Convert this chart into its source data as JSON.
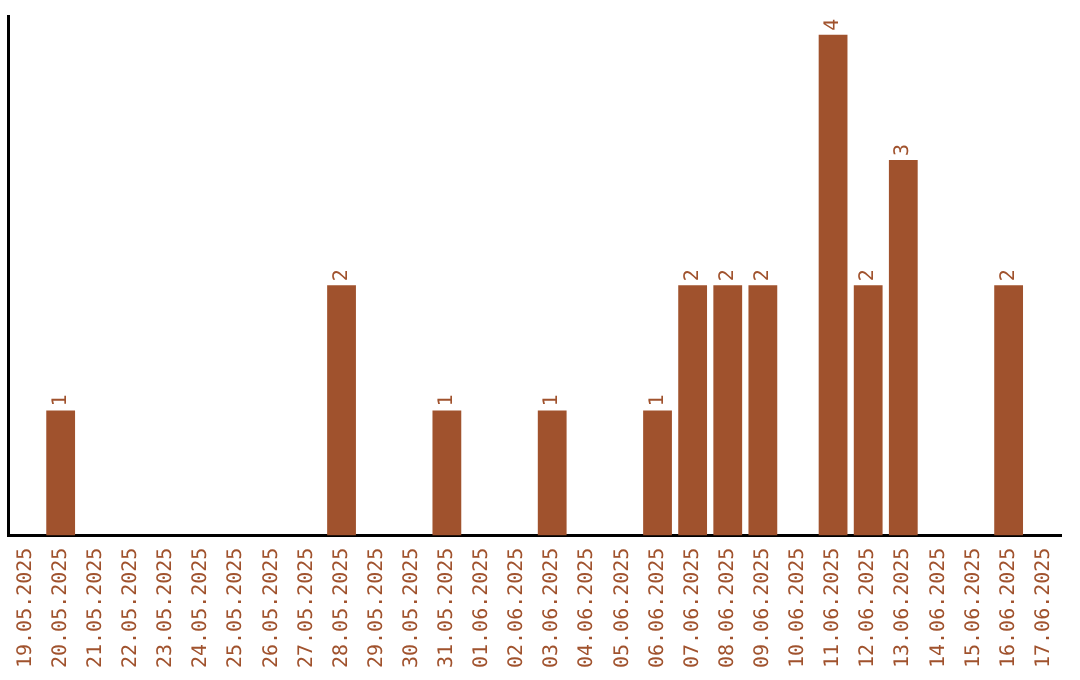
{
  "chart_data": {
    "type": "bar",
    "categories": [
      "19.05.2025",
      "20.05.2025",
      "21.05.2025",
      "22.05.2025",
      "23.05.2025",
      "24.05.2025",
      "25.05.2025",
      "26.05.2025",
      "27.05.2025",
      "28.05.2025",
      "29.05.2025",
      "30.05.2025",
      "31.05.2025",
      "01.06.2025",
      "02.06.2025",
      "03.06.2025",
      "04.06.2025",
      "05.06.2025",
      "06.06.2025",
      "07.06.2025",
      "08.06.2025",
      "09.06.2025",
      "10.06.2025",
      "11.06.2025",
      "12.06.2025",
      "13.06.2025",
      "14.06.2025",
      "15.06.2025",
      "16.06.2025",
      "17.06.2025"
    ],
    "values": [
      0,
      1,
      0,
      0,
      0,
      0,
      0,
      0,
      0,
      2,
      0,
      0,
      1,
      0,
      0,
      1,
      0,
      0,
      1,
      2,
      2,
      2,
      0,
      4,
      2,
      3,
      0,
      0,
      2,
      0
    ],
    "value_labels": [
      null,
      "1",
      null,
      null,
      null,
      null,
      null,
      null,
      null,
      "2",
      null,
      null,
      "1",
      null,
      null,
      "1",
      null,
      null,
      "1",
      "2",
      "2",
      "2",
      null,
      "4",
      "2",
      "3",
      null,
      null,
      "2",
      null
    ],
    "color": "#a0522d",
    "ylim": [
      0,
      4.15
    ],
    "tick_labels": "x",
    "grid": false,
    "legend": false
  }
}
